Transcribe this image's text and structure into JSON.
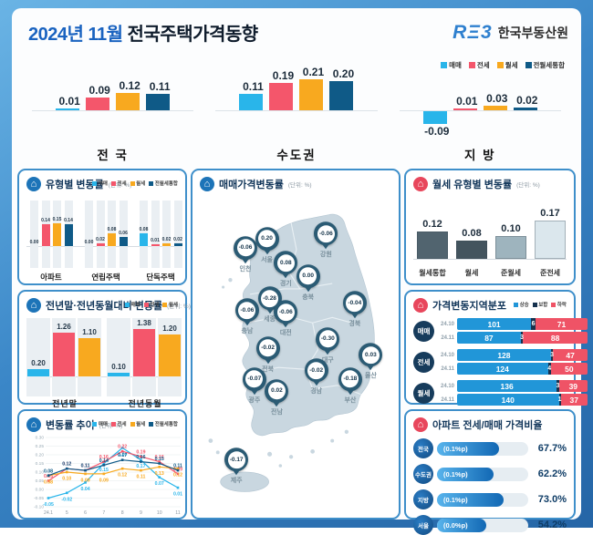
{
  "header": {
    "title_period": "2024년 11월",
    "title_main": "전국주택가격동향",
    "logo_mark": "RΞ3",
    "logo_name": "한국부동산원"
  },
  "legend_main": {
    "items": [
      {
        "label": "매매",
        "color": "#29b5ea"
      },
      {
        "label": "전세",
        "color": "#f4566b"
      },
      {
        "label": "월세",
        "color": "#f8a91f"
      },
      {
        "label": "전월세통합",
        "color": "#0f5a87"
      }
    ]
  },
  "chart_data": [
    {
      "id": "summary",
      "type": "bar",
      "title": "",
      "unit": "%",
      "categories": [
        "전 국",
        "수도권",
        "지 방"
      ],
      "series": [
        {
          "name": "매매",
          "color": "#29b5ea",
          "values": [
            0.01,
            0.11,
            -0.09
          ]
        },
        {
          "name": "전세",
          "color": "#f4566b",
          "values": [
            0.09,
            0.19,
            0.01
          ]
        },
        {
          "name": "월세",
          "color": "#f8a91f",
          "values": [
            0.12,
            0.21,
            0.03
          ]
        },
        {
          "name": "전월세통합",
          "color": "#0f5a87",
          "values": [
            0.11,
            0.2,
            0.02
          ]
        }
      ]
    },
    {
      "id": "by_type",
      "type": "bar",
      "title": "유형별 변동률",
      "unit": "(단위: %)",
      "categories": [
        "아파트",
        "연립주택",
        "단독주택"
      ],
      "series": [
        {
          "name": "매매",
          "color": "#29b5ea",
          "values": [
            0.0,
            0.0,
            0.08
          ]
        },
        {
          "name": "전세",
          "color": "#f4566b",
          "values": [
            0.14,
            0.02,
            0.01
          ]
        },
        {
          "name": "월세",
          "color": "#f8a91f",
          "values": [
            0.15,
            0.08,
            0.02
          ]
        },
        {
          "name": "전월세통합",
          "color": "#0f5a87",
          "values": [
            0.14,
            0.06,
            0.02
          ]
        }
      ]
    },
    {
      "id": "yoy",
      "type": "bar",
      "title": "전년말·전년동월대비 변동률",
      "unit": "(단위: %)",
      "categories": [
        "전년말",
        "전년동월"
      ],
      "series": [
        {
          "name": "매매",
          "color": "#29b5ea",
          "values": [
            0.2,
            0.1
          ]
        },
        {
          "name": "전세",
          "color": "#f4566b",
          "values": [
            1.26,
            1.38
          ]
        },
        {
          "name": "월세",
          "color": "#f8a91f",
          "values": [
            1.1,
            1.2
          ]
        }
      ]
    },
    {
      "id": "trend",
      "type": "line",
      "title": "변동률 추이",
      "unit": "(단위: %)",
      "x": [
        "24.1",
        "5",
        "6",
        "7",
        "8",
        "9",
        "10",
        "11"
      ],
      "ylim": [
        -0.1,
        0.3
      ],
      "yticks": [
        0.3,
        0.25,
        0.2,
        0.15,
        0.1,
        0.05,
        0.0,
        -0.05,
        -0.1
      ],
      "grid": true,
      "legend_position": "top-right",
      "series": [
        {
          "name": "매매",
          "color": "#29b5ea",
          "values": [
            -0.05,
            -0.02,
            0.04,
            0.15,
            0.24,
            0.17,
            0.07,
            0.01
          ]
        },
        {
          "name": "전세",
          "color": "#f4566b",
          "values": [
            0.05,
            0.12,
            0.11,
            0.16,
            0.22,
            0.19,
            0.16,
            0.09
          ]
        },
        {
          "name": "월세",
          "color": "#f8a91f",
          "values": [
            0.08,
            0.1,
            0.09,
            0.09,
            0.12,
            0.11,
            0.13,
            0.12
          ]
        },
        {
          "name": "전월세통합",
          "color": "#0f5a87",
          "values": [
            0.08,
            0.12,
            0.11,
            0.14,
            0.17,
            0.16,
            0.15,
            0.11
          ]
        }
      ]
    },
    {
      "id": "map",
      "type": "map",
      "title": "매매가격변동률",
      "unit": "(단위: %)",
      "pins": [
        {
          "region": "인천",
          "value": "-0.06",
          "x": 24.3,
          "y": 19.0
        },
        {
          "region": "서울",
          "value": "0.20",
          "x": 35.3,
          "y": 16.2
        },
        {
          "region": "경기",
          "value": "0.08",
          "x": 45.0,
          "y": 23.9
        },
        {
          "region": "강원",
          "value": "-0.06",
          "x": 65.6,
          "y": 14.5
        },
        {
          "region": "충북",
          "value": "0.00",
          "x": 56.4,
          "y": 28.1
        },
        {
          "region": "세종",
          "value": "-0.28",
          "x": 36.7,
          "y": 35.2
        },
        {
          "region": "충남",
          "value": "-0.06",
          "x": 25.2,
          "y": 38.9
        },
        {
          "region": "대전",
          "value": "-0.06",
          "x": 45.0,
          "y": 39.5
        },
        {
          "region": "경북",
          "value": "-0.04",
          "x": 80.3,
          "y": 36.6
        },
        {
          "region": "대구",
          "value": "-0.30",
          "x": 66.5,
          "y": 48.0
        },
        {
          "region": "전북",
          "value": "-0.02",
          "x": 35.8,
          "y": 50.9
        },
        {
          "region": "울산",
          "value": "0.03",
          "x": 88.5,
          "y": 53.1
        },
        {
          "region": "경남",
          "value": "-0.02",
          "x": 60.6,
          "y": 58.0
        },
        {
          "region": "부산",
          "value": "-0.18",
          "x": 78.0,
          "y": 60.8
        },
        {
          "region": "광주",
          "value": "-0.07",
          "x": 28.9,
          "y": 60.8
        },
        {
          "region": "전남",
          "value": "0.02",
          "x": 40.4,
          "y": 64.5
        },
        {
          "region": "제주",
          "value": "-0.17",
          "x": 19.7,
          "y": 86.4
        }
      ]
    },
    {
      "id": "rent_type",
      "type": "bar",
      "title": "월세 유형별 변동률",
      "unit": "(단위: %)",
      "categories": [
        "월세통합",
        "월세",
        "준월세",
        "준전세"
      ],
      "values": [
        0.12,
        0.08,
        0.1,
        0.17
      ],
      "colors": [
        "#51646f",
        "#43545e",
        "#9eb4be",
        "#dbe7ed"
      ]
    },
    {
      "id": "distribution",
      "type": "stacked-bar",
      "title": "가격변동지역분포",
      "legend": [
        {
          "label": "상승",
          "color": "#2196d8"
        },
        {
          "label": "보합",
          "color": "#16324e"
        },
        {
          "label": "하락",
          "color": "#ef5366"
        }
      ],
      "total_regions": 178,
      "rows": [
        {
          "group": "매매",
          "bars": [
            {
              "period": "24.10",
              "up": 101,
              "flat": 6,
              "down": 71
            },
            {
              "period": "24.11",
              "up": 87,
              "flat": 3,
              "down": 88
            }
          ]
        },
        {
          "group": "전세",
          "bars": [
            {
              "period": "24.10",
              "up": 128,
              "flat": 3,
              "down": 47
            },
            {
              "period": "24.11",
              "up": 124,
              "flat": 4,
              "down": 50
            }
          ]
        },
        {
          "group": "월세",
          "bars": [
            {
              "period": "24.10",
              "up": 136,
              "flat": 3,
              "down": 39
            },
            {
              "period": "24.11",
              "up": 140,
              "flat": 1,
              "down": 37
            }
          ]
        }
      ]
    },
    {
      "id": "ratio",
      "type": "bar",
      "title": "아파트 전세/매매 가격비율",
      "rows": [
        {
          "region": "전국",
          "delta": "(0.1%p)",
          "value": "67.7%",
          "pct": 67.7
        },
        {
          "region": "수도권",
          "delta": "(0.1%p)",
          "value": "62.2%",
          "pct": 62.2
        },
        {
          "region": "지방",
          "delta": "(0.1%p)",
          "value": "73.0%",
          "pct": 73.0
        },
        {
          "region": "서울",
          "delta": "(0.0%p)",
          "value": "54.2%",
          "pct": 54.2
        }
      ]
    }
  ]
}
